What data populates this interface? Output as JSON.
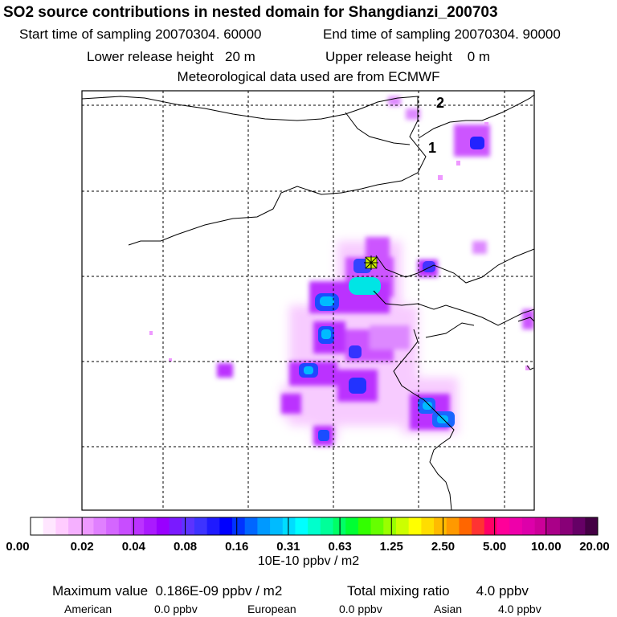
{
  "title": "SO2 source contributions in nested domain for Shangdianzi_200703",
  "sampling": {
    "start": "Start time of sampling 20070304. 60000",
    "end": "End time of sampling 20070304. 90000"
  },
  "release": {
    "lower": "Lower release height   20 m",
    "upper": "Upper release height    0 m"
  },
  "met": "Meteorological data used are from ECMWF",
  "map_labels": {
    "label_2": "2",
    "label_1": "1"
  },
  "colorbar": {
    "tick_labels": [
      "0.00",
      "0.02",
      "0.04",
      "0.08",
      "0.16",
      "0.31",
      "0.63",
      "1.25",
      "2.50",
      "5.00",
      "10.00",
      "20.00"
    ],
    "colors": [
      "#ffffff",
      "#ffe6ff",
      "#ffccff",
      "#f5b0ff",
      "#ee99ff",
      "#e080ff",
      "#d466ff",
      "#c84dff",
      "#bb33ff",
      "#aa1aff",
      "#9900ff",
      "#7a1aff",
      "#5c33ff",
      "#3d33ff",
      "#1f1aff",
      "#0000ff",
      "#0033ff",
      "#0066ff",
      "#0099ff",
      "#00bbff",
      "#00ddff",
      "#00ffff",
      "#00ffcc",
      "#00ff99",
      "#00ff66",
      "#00ff33",
      "#33ff00",
      "#66ff00",
      "#99ff00",
      "#ccff00",
      "#ffff00",
      "#ffdd00",
      "#ffbb00",
      "#ff9900",
      "#ff6600",
      "#ff3333",
      "#ff0066",
      "#ff0099",
      "#ee00aa",
      "#dd00aa",
      "#cc0099",
      "#aa0088",
      "#880077",
      "#660066",
      "#440044"
    ],
    "units": "10E-10 ppbv / m2"
  },
  "stats": {
    "max_label": "Maximum value  0.186E-09 ppbv / m2",
    "total_label": "Total mixing ratio       4.0 ppbv",
    "american_label": "American",
    "american_value": "0.0 ppbv",
    "european_label": "European",
    "european_value": "0.0 ppbv",
    "asian_label": "Asian",
    "asian_value": "4.0 ppbv"
  },
  "colors": {
    "frame": "#000000",
    "grid": "#000000",
    "coast": "#000000"
  }
}
